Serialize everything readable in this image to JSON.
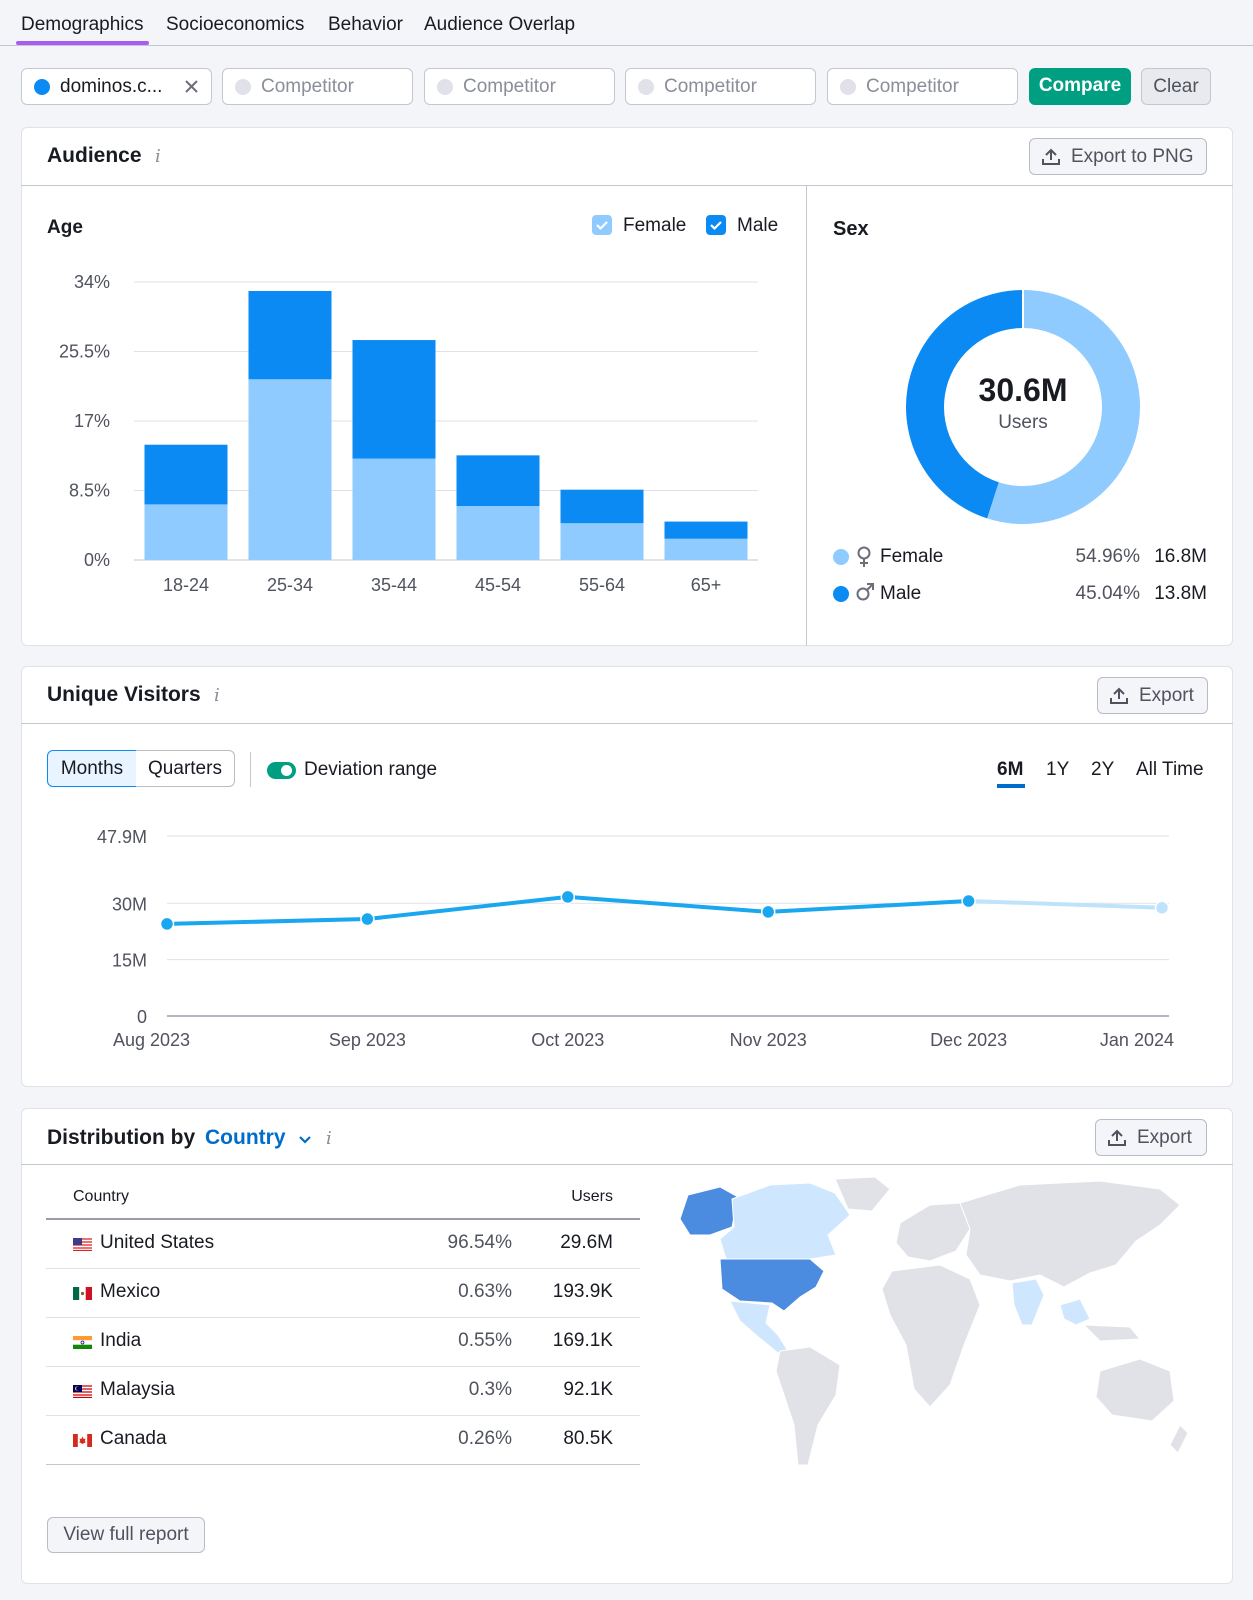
{
  "tabs": [
    "Demographics",
    "Socioeconomics",
    "Behavior",
    "Audience Overlap"
  ],
  "domains": {
    "primary": "dominos.c...",
    "competitor_placeholder": "Competitor",
    "compare_label": "Compare",
    "clear_label": "Clear"
  },
  "colors": {
    "female": "#8fcbff",
    "male": "#0b8af3",
    "accent_green": "#009f81",
    "tab_underline": "#a75cf2",
    "link": "#006dca"
  },
  "audience": {
    "title": "Audience",
    "export_label": "Export to PNG",
    "age": {
      "title": "Age",
      "legend_female": "Female",
      "legend_male": "Male"
    },
    "sex": {
      "title": "Sex",
      "total_value": "30.6M",
      "total_label": "Users",
      "rows": [
        {
          "label": "Female",
          "pct": "54.96%",
          "value": "16.8M",
          "icon": "female-symbol-icon"
        },
        {
          "label": "Male",
          "pct": "45.04%",
          "value": "13.8M",
          "icon": "male-symbol-icon"
        }
      ]
    }
  },
  "unique_visitors": {
    "title": "Unique Visitors",
    "export_label": "Export",
    "toggle_months": "Months",
    "toggle_quarters": "Quarters",
    "deviation_label": "Deviation range",
    "ranges": [
      "6M",
      "1Y",
      "2Y",
      "All Time"
    ]
  },
  "distribution": {
    "title_prefix": "Distribution by",
    "title_dropdown": "Country",
    "export_label": "Export",
    "col_country": "Country",
    "col_users": "Users",
    "rows": [
      {
        "country": "United States",
        "pct": "96.54%",
        "users": "29.6M",
        "flag": "us-flag-icon"
      },
      {
        "country": "Mexico",
        "pct": "0.63%",
        "users": "193.9K",
        "flag": "mexico-flag-icon"
      },
      {
        "country": "India",
        "pct": "0.55%",
        "users": "169.1K",
        "flag": "india-flag-icon"
      },
      {
        "country": "Malaysia",
        "pct": "0.3%",
        "users": "92.1K",
        "flag": "malaysia-flag-icon"
      },
      {
        "country": "Canada",
        "pct": "0.26%",
        "users": "80.5K",
        "flag": "canada-flag-icon"
      }
    ],
    "view_full_label": "View full report"
  },
  "chart_data": [
    {
      "type": "bar",
      "title": "Age",
      "stacked": true,
      "categories": [
        "18-24",
        "25-34",
        "35-44",
        "45-54",
        "55-64",
        "65+"
      ],
      "series": [
        {
          "name": "Female",
          "values": [
            6.8,
            22.1,
            12.4,
            6.6,
            4.5,
            2.6
          ]
        },
        {
          "name": "Male",
          "values": [
            7.3,
            10.8,
            14.5,
            6.2,
            4.1,
            2.1
          ]
        }
      ],
      "y_ticks": [
        "0%",
        "8.5%",
        "17%",
        "25.5%",
        "34%"
      ],
      "ylim": [
        0,
        34
      ]
    },
    {
      "type": "pie",
      "title": "Sex",
      "donut": true,
      "labels": [
        "Female",
        "Male"
      ],
      "values": [
        54.96,
        45.04
      ]
    },
    {
      "type": "line",
      "x": [
        "Aug 2023",
        "Sep 2023",
        "Oct 2023",
        "Nov 2023",
        "Dec 2023",
        "Jan 2024"
      ],
      "series": [
        {
          "values": [
            24.5,
            25.8,
            31.7,
            27.7,
            30.6,
            28.8
          ]
        }
      ],
      "y_ticks": [
        "0",
        "15M",
        "30M",
        "47.9M"
      ],
      "ylim": [
        0,
        47.9
      ],
      "y_tick_values": [
        0,
        15,
        30,
        47.9
      ]
    }
  ]
}
